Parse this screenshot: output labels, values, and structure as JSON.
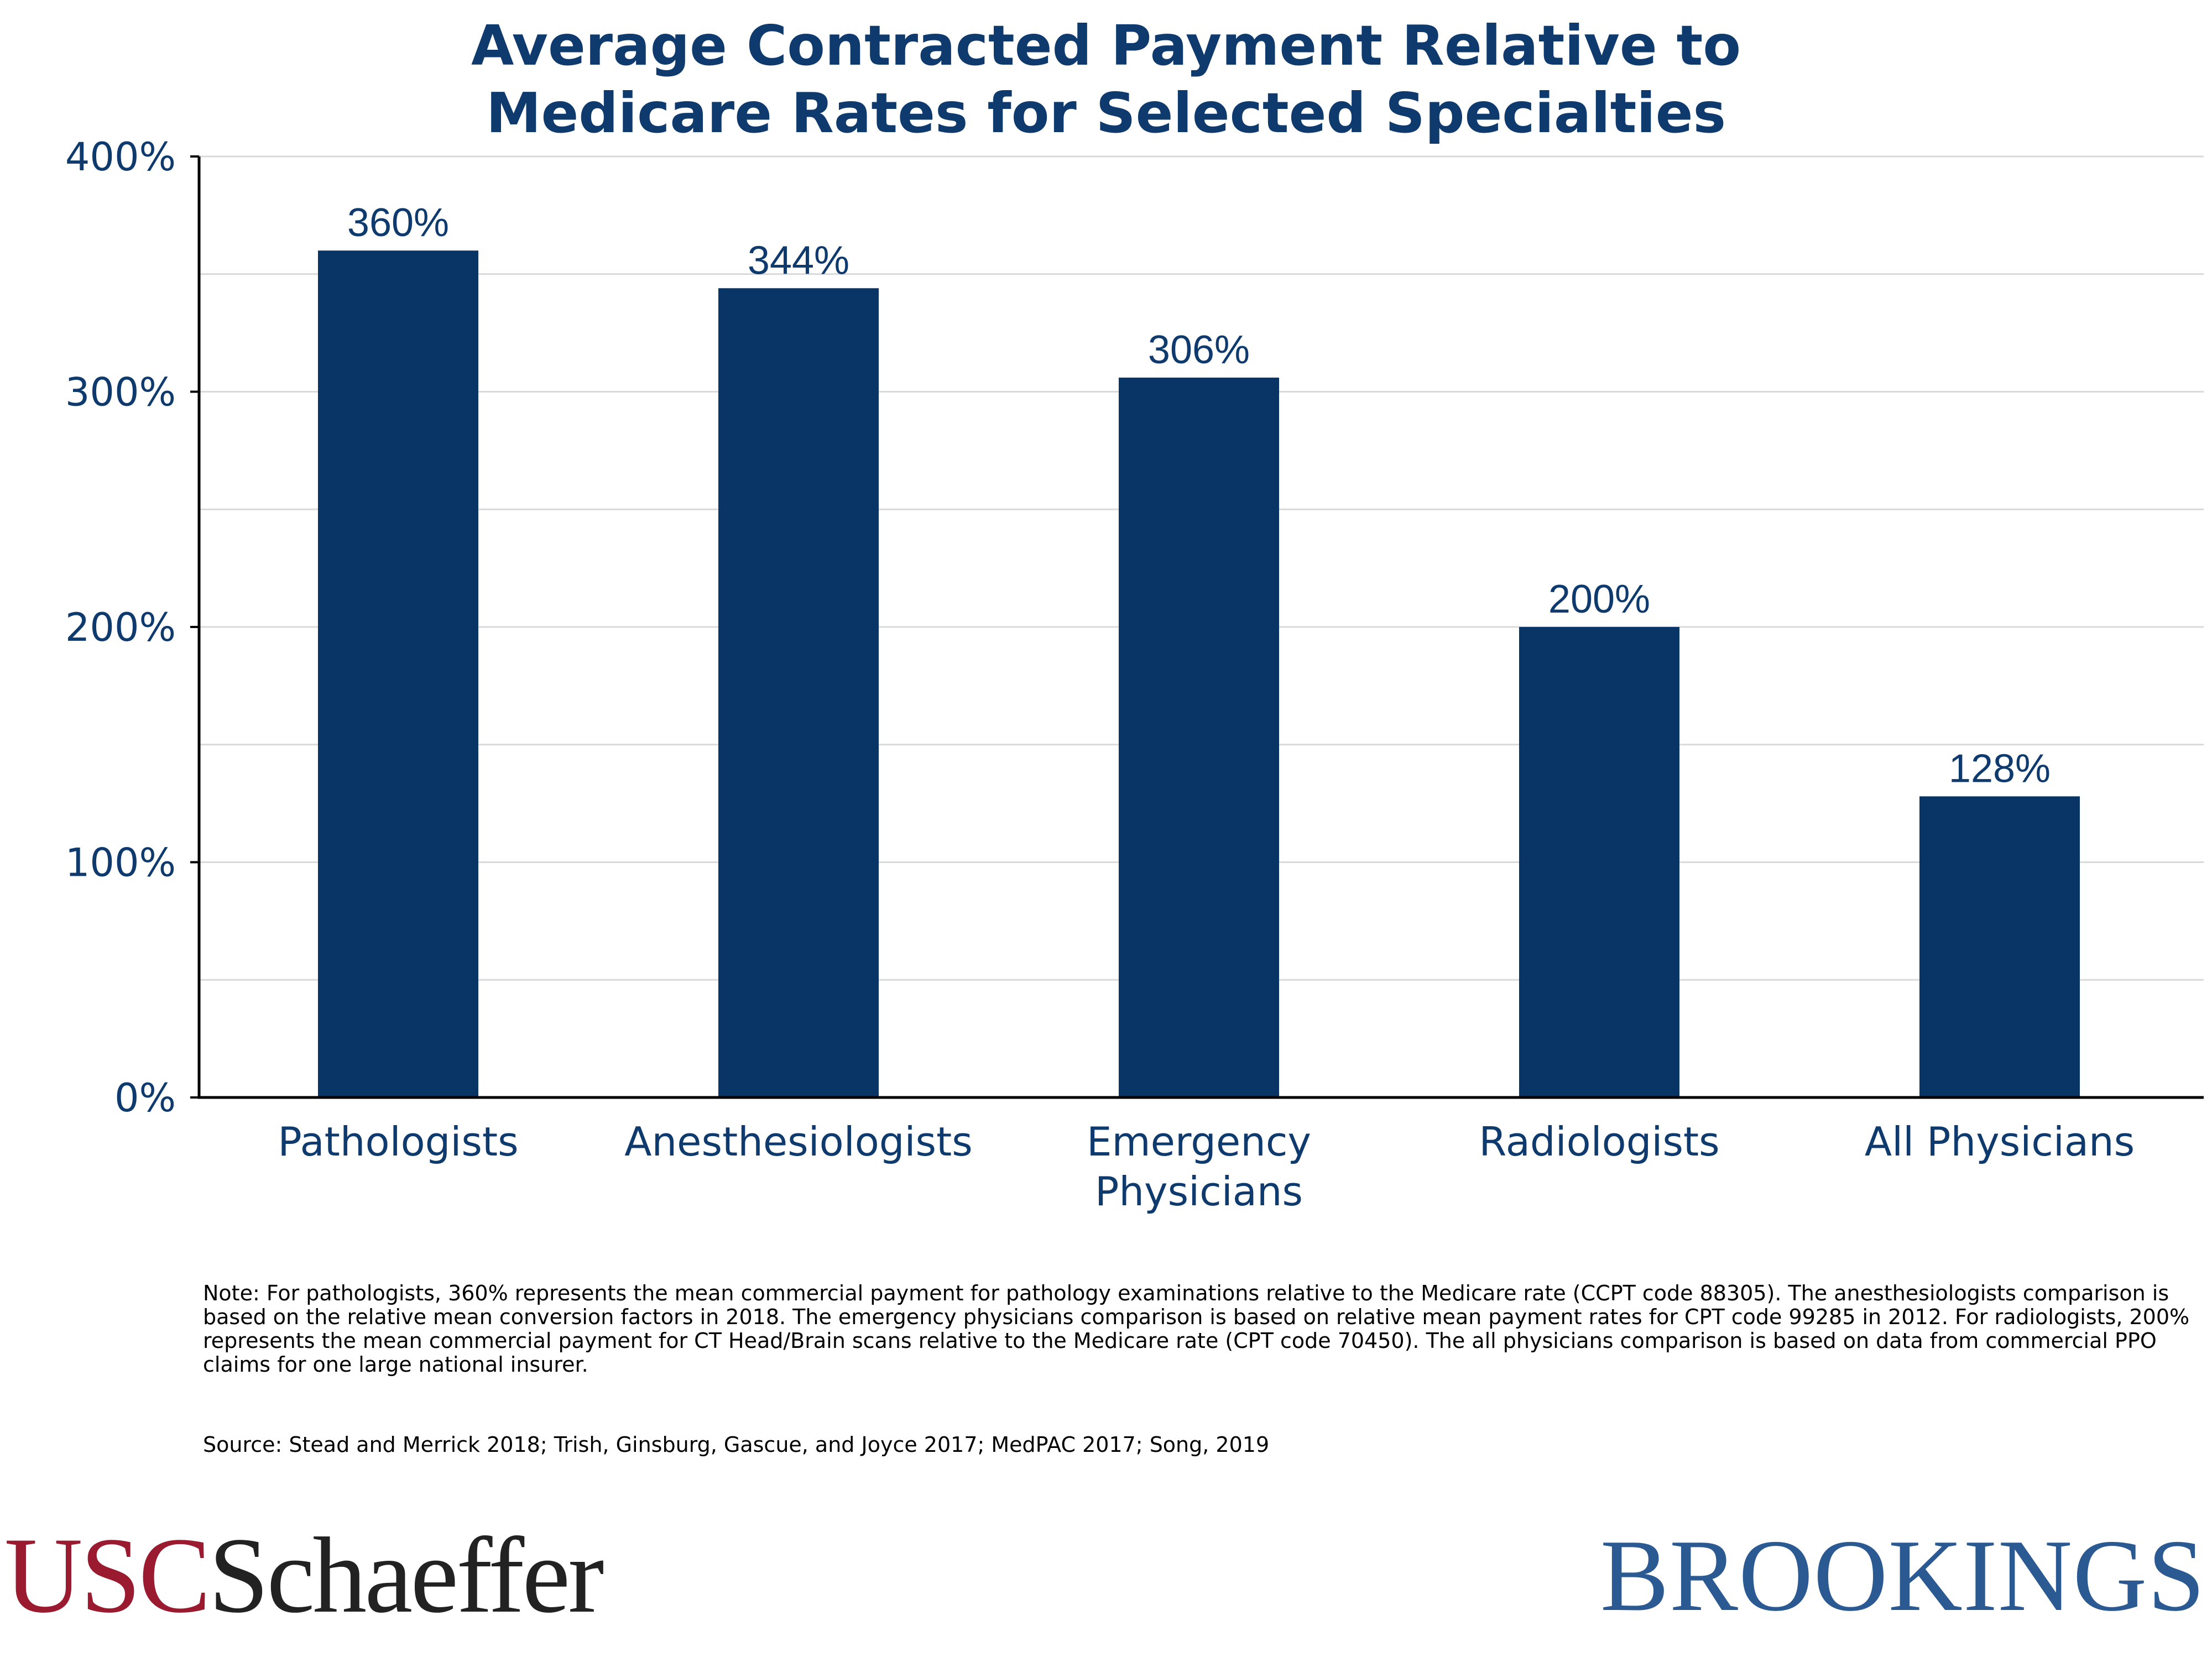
{
  "title_lines": [
    "Average Contracted Payment Relative to",
    "Medicare Rates for Selected Specialties"
  ],
  "chart_data": {
    "type": "bar",
    "title": "Average Contracted Payment Relative to Medicare Rates for Selected Specialties",
    "categories": [
      [
        "Pathologists"
      ],
      [
        "Anesthesiologists"
      ],
      [
        "Emergency",
        "Physicians"
      ],
      [
        "Radiologists"
      ],
      [
        "All Physicians"
      ]
    ],
    "values": [
      360,
      344,
      306,
      200,
      128
    ],
    "data_labels": [
      "360%",
      "344%",
      "306%",
      "200%",
      "128%"
    ],
    "y_ticks": [
      0,
      100,
      200,
      300,
      400
    ],
    "y_tick_labels": [
      "0%",
      "100%",
      "200%",
      "300%",
      "400%"
    ],
    "ylim": [
      0,
      400
    ],
    "minor_gridlines": [
      50,
      150,
      250,
      350
    ],
    "grid": true,
    "bar_color": "#083566",
    "text_color": "#0e3a6e"
  },
  "note": "Note: For pathologists, 360% represents the mean commercial payment for pathology examinations relative to the Medicare rate (CCPT code 88305). The anesthesiologists comparison is based on the relative mean conversion factors in 2018. The emergency physicians comparison is based on relative mean payment rates for CPT code 99285 in 2012. For radiologists, 200% represents the mean commercial payment for CT Head/Brain scans relative to the Medicare rate (CPT code 70450). The all physicians comparison is based on data from commercial PPO claims for one large national insurer.",
  "source": "Source: Stead and Merrick 2018; Trish, Ginsburg, Gascue, and Joyce 2017; MedPAC 2017; Song, 2019",
  "logos": {
    "left_part1": "USC",
    "left_part2": "Schaeffer",
    "right": "BROOKINGS"
  }
}
